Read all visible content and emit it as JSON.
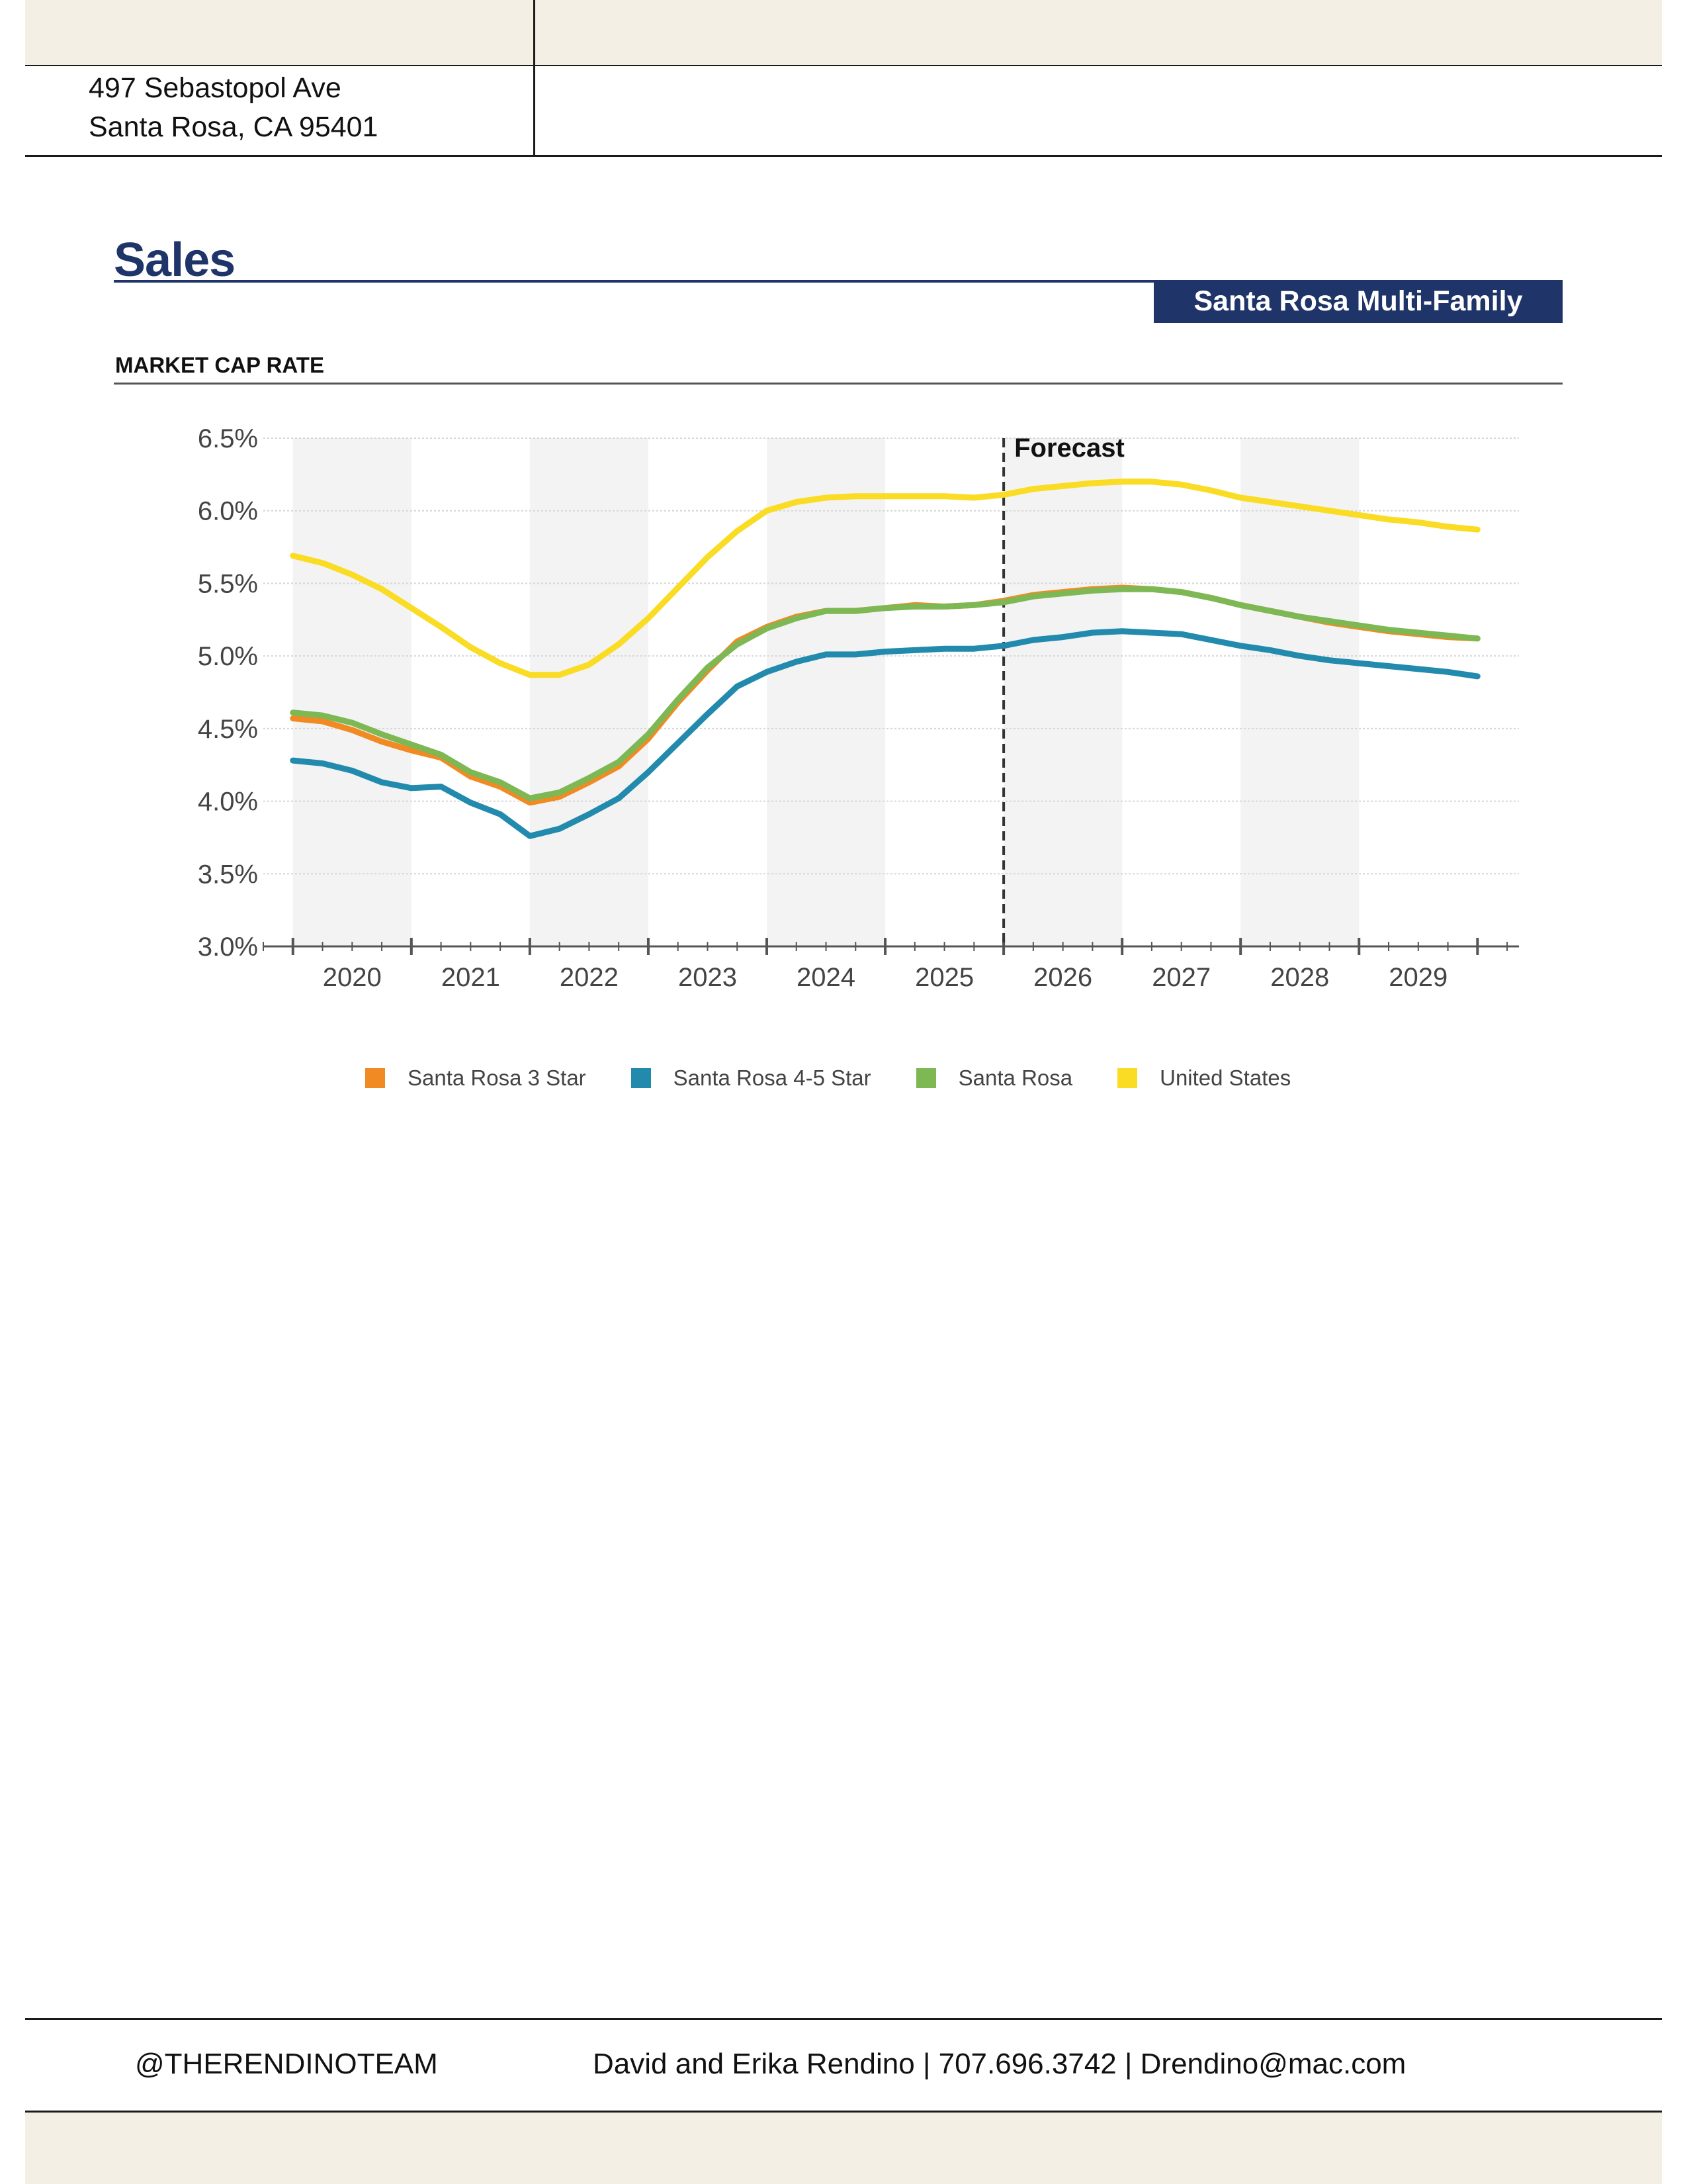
{
  "header": {
    "address_line1": "497 Sebastopol Ave",
    "address_line2": "Santa Rosa, CA 95401"
  },
  "section": {
    "title": "Sales",
    "banner": "Santa Rosa Multi-Family",
    "subtitle": "MARKET CAP RATE"
  },
  "chart_data": {
    "type": "line",
    "title": "MARKET CAP RATE",
    "xlabel": "",
    "ylabel": "",
    "ylim": [
      3.0,
      6.5
    ],
    "yticks": [
      3.0,
      3.5,
      4.0,
      4.5,
      5.0,
      5.5,
      6.0,
      6.5
    ],
    "ytick_labels": [
      "3.0%",
      "3.5%",
      "4.0%",
      "4.5%",
      "5.0%",
      "5.5%",
      "6.0%",
      "6.5%"
    ],
    "xlim": [
      2019.25,
      2029.85
    ],
    "xticks": [
      2020,
      2021,
      2022,
      2023,
      2024,
      2025,
      2026,
      2027,
      2028,
      2029
    ],
    "xtick_labels": [
      "2020",
      "2021",
      "2022",
      "2023",
      "2024",
      "2025",
      "2026",
      "2027",
      "2028",
      "2029"
    ],
    "forecast_start": 2025.5,
    "forecast_label": "Forecast",
    "grid": true,
    "legend_position": "bottom",
    "x": [
      2019.5,
      2019.75,
      2020.0,
      2020.25,
      2020.5,
      2020.75,
      2021.0,
      2021.25,
      2021.5,
      2021.75,
      2022.0,
      2022.25,
      2022.5,
      2022.75,
      2023.0,
      2023.25,
      2023.5,
      2023.75,
      2024.0,
      2024.25,
      2024.5,
      2024.75,
      2025.0,
      2025.25,
      2025.5,
      2025.75,
      2026.0,
      2026.25,
      2026.5,
      2026.75,
      2027.0,
      2027.25,
      2027.5,
      2027.75,
      2028.0,
      2028.25,
      2028.5,
      2028.75,
      2029.0,
      2029.25,
      2029.5
    ],
    "series": [
      {
        "name": "Santa Rosa 3 Star",
        "color": "#f18a23",
        "values": [
          4.57,
          4.55,
          4.49,
          4.41,
          4.35,
          4.3,
          4.17,
          4.1,
          3.99,
          4.03,
          4.13,
          4.24,
          4.43,
          4.68,
          4.9,
          5.1,
          5.2,
          5.27,
          5.31,
          5.31,
          5.33,
          5.35,
          5.34,
          5.35,
          5.38,
          5.42,
          5.44,
          5.46,
          5.47,
          5.46,
          5.44,
          5.4,
          5.35,
          5.31,
          5.27,
          5.23,
          5.2,
          5.17,
          5.15,
          5.13,
          5.12
        ]
      },
      {
        "name": "Santa Rosa 4-5 Star",
        "color": "#218aad",
        "values": [
          4.28,
          4.26,
          4.21,
          4.13,
          4.09,
          4.1,
          3.99,
          3.91,
          3.76,
          3.81,
          3.91,
          4.02,
          4.2,
          4.4,
          4.6,
          4.79,
          4.89,
          4.96,
          5.01,
          5.01,
          5.03,
          5.04,
          5.05,
          5.05,
          5.07,
          5.11,
          5.13,
          5.16,
          5.17,
          5.16,
          5.15,
          5.11,
          5.07,
          5.04,
          5.0,
          4.97,
          4.95,
          4.93,
          4.91,
          4.89,
          4.86
        ]
      },
      {
        "name": "Santa Rosa",
        "color": "#7db854",
        "values": [
          4.61,
          4.59,
          4.54,
          4.46,
          4.39,
          4.32,
          4.2,
          4.13,
          4.02,
          4.06,
          4.16,
          4.27,
          4.46,
          4.7,
          4.92,
          5.08,
          5.19,
          5.26,
          5.31,
          5.31,
          5.33,
          5.34,
          5.34,
          5.35,
          5.37,
          5.41,
          5.43,
          5.45,
          5.46,
          5.46,
          5.44,
          5.4,
          5.35,
          5.31,
          5.27,
          5.24,
          5.21,
          5.18,
          5.16,
          5.14,
          5.12
        ]
      },
      {
        "name": "United States",
        "color": "#f9dc23",
        "values": [
          5.69,
          5.64,
          5.56,
          5.46,
          5.33,
          5.2,
          5.06,
          4.95,
          4.87,
          4.87,
          4.94,
          5.08,
          5.26,
          5.47,
          5.68,
          5.86,
          6.0,
          6.06,
          6.09,
          6.1,
          6.1,
          6.1,
          6.1,
          6.09,
          6.11,
          6.15,
          6.17,
          6.19,
          6.2,
          6.2,
          6.18,
          6.14,
          6.09,
          6.06,
          6.03,
          6.0,
          5.97,
          5.94,
          5.92,
          5.89,
          5.87
        ]
      }
    ]
  },
  "legend": {
    "items": [
      {
        "label": "Santa Rosa 3 Star",
        "color": "#f18a23"
      },
      {
        "label": "Santa Rosa 4-5 Star",
        "color": "#218aad"
      },
      {
        "label": "Santa Rosa",
        "color": "#7db854"
      },
      {
        "label": "United States",
        "color": "#f9dc23"
      }
    ]
  },
  "footer": {
    "handle": "@THERENDINOTEAM",
    "contact": "David and Erika Rendino  |  707.696.3742 | Drendino@mac.com"
  }
}
